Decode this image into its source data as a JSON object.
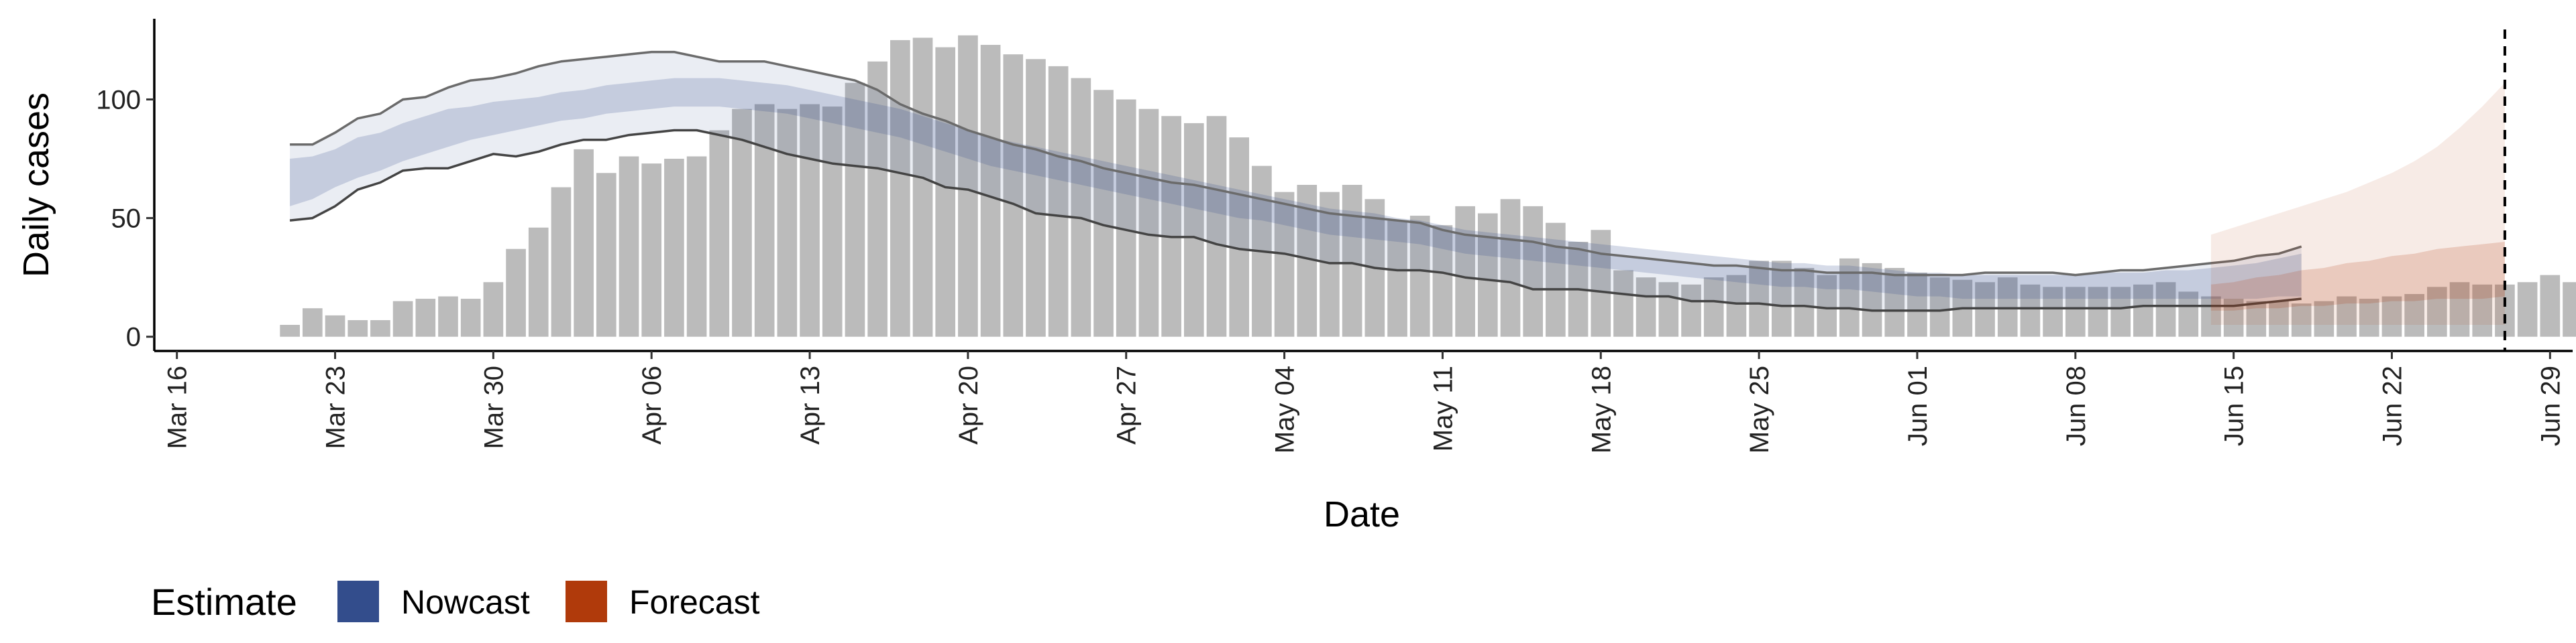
{
  "chart_data": {
    "type": "bar",
    "xlabel": "Date",
    "ylabel": "Daily cases",
    "ylim": [
      -6,
      134
    ],
    "yticks": [
      0,
      50,
      100
    ],
    "xlim": [
      "2020-03-15",
      "2020-06-30"
    ],
    "xticks": [
      "Mar 16",
      "Mar 23",
      "Mar 30",
      "Apr 06",
      "Apr 13",
      "Apr 20",
      "Apr 27",
      "May 04",
      "May 11",
      "May 18",
      "May 25",
      "Jun 01",
      "Jun 08",
      "Jun 15",
      "Jun 22",
      "Jun 29"
    ],
    "xtick_dates": [
      "2020-03-16",
      "2020-03-23",
      "2020-03-30",
      "2020-04-06",
      "2020-04-13",
      "2020-04-20",
      "2020-04-27",
      "2020-05-04",
      "2020-05-11",
      "2020-05-18",
      "2020-05-25",
      "2020-06-01",
      "2020-06-08",
      "2020-06-15",
      "2020-06-22",
      "2020-06-29"
    ],
    "grid": false,
    "bar_color": "#bbbbbb",
    "reported": {
      "start_date": "2020-03-21",
      "values": [
        5,
        12,
        9,
        7,
        7,
        15,
        16,
        17,
        16,
        23,
        37,
        46,
        63,
        79,
        69,
        76,
        73,
        75,
        76,
        87,
        96,
        98,
        96,
        98,
        97,
        107,
        116,
        125,
        126,
        122,
        127,
        123,
        119,
        117,
        114,
        109,
        104,
        100,
        96,
        93,
        90,
        93,
        84,
        72,
        61,
        64,
        61,
        64,
        58,
        49,
        51,
        47,
        55,
        52,
        58,
        55,
        48,
        40,
        45,
        28,
        25,
        23,
        22,
        25,
        26,
        32,
        32,
        29,
        26,
        33,
        31,
        29,
        27,
        25,
        24,
        23,
        25,
        22,
        21,
        21,
        21,
        21,
        22,
        23,
        19,
        17,
        16,
        15,
        15,
        14,
        15,
        17,
        16,
        17,
        18,
        21,
        23,
        22,
        22,
        23,
        26,
        23,
        21,
        19
      ]
    },
    "nowcast": {
      "name": "Nowcast",
      "color": "#334d8c",
      "start_date": "2020-03-21",
      "median": [
        65,
        67,
        71,
        76,
        78,
        82,
        85,
        88,
        90,
        92,
        93,
        95,
        97,
        98,
        100,
        101,
        102,
        103,
        103,
        103,
        102,
        101,
        100,
        98,
        96,
        94,
        92,
        90,
        87,
        84,
        81,
        78,
        76,
        74,
        72,
        70,
        68,
        66,
        64,
        62,
        60,
        58,
        56,
        54,
        52,
        50,
        48,
        47,
        46,
        45,
        44,
        42,
        40,
        39,
        38,
        37,
        36,
        35,
        34,
        33,
        32,
        31,
        30,
        29,
        28,
        27,
        26,
        26,
        25,
        25,
        24,
        23,
        22,
        22,
        21,
        21,
        21,
        21,
        21,
        21,
        21,
        21,
        21,
        21,
        21,
        21,
        21,
        22,
        23,
        24
      ],
      "inner_lower": [
        55,
        58,
        63,
        67,
        70,
        74,
        77,
        80,
        83,
        85,
        87,
        89,
        91,
        92,
        94,
        95,
        96,
        97,
        97,
        97,
        96,
        95,
        94,
        92,
        90,
        88,
        86,
        84,
        81,
        78,
        75,
        72,
        70,
        68,
        66,
        64,
        62,
        60,
        58,
        56,
        54,
        52,
        50,
        49,
        47,
        45,
        43,
        42,
        41,
        40,
        39,
        37,
        35,
        34,
        33,
        32,
        31,
        30,
        29,
        28,
        27,
        26,
        25,
        24,
        23,
        22,
        21,
        21,
        20,
        20,
        19,
        18,
        17,
        17,
        16,
        16,
        16,
        16,
        16,
        16,
        16,
        16,
        16,
        16,
        16,
        16,
        16,
        16,
        17,
        17
      ],
      "inner_upper": [
        75,
        76,
        79,
        84,
        86,
        90,
        93,
        96,
        97,
        99,
        100,
        101,
        103,
        104,
        106,
        107,
        108,
        109,
        109,
        109,
        108,
        107,
        106,
        104,
        102,
        100,
        98,
        96,
        93,
        90,
        87,
        84,
        82,
        80,
        78,
        76,
        74,
        72,
        70,
        68,
        66,
        64,
        62,
        60,
        58,
        56,
        54,
        53,
        52,
        50,
        49,
        47,
        45,
        44,
        43,
        42,
        41,
        40,
        39,
        38,
        37,
        36,
        35,
        34,
        33,
        32,
        31,
        31,
        30,
        30,
        29,
        28,
        27,
        27,
        26,
        26,
        26,
        26,
        26,
        26,
        27,
        27,
        27,
        28,
        28,
        29,
        30,
        31,
        33,
        35
      ],
      "outer_lower": [
        49,
        50,
        55,
        62,
        65,
        70,
        71,
        71,
        74,
        77,
        76,
        78,
        81,
        83,
        83,
        85,
        86,
        87,
        87,
        85,
        83,
        80,
        77,
        75,
        73,
        72,
        71,
        69,
        67,
        63,
        62,
        59,
        56,
        52,
        51,
        50,
        47,
        45,
        43,
        42,
        42,
        39,
        37,
        36,
        35,
        33,
        31,
        31,
        29,
        28,
        28,
        27,
        25,
        24,
        23,
        20,
        20,
        20,
        19,
        18,
        17,
        17,
        15,
        15,
        14,
        14,
        13,
        13,
        12,
        12,
        11,
        11,
        11,
        11,
        12,
        12,
        12,
        12,
        12,
        12,
        12,
        12,
        13,
        13,
        13,
        13,
        13,
        14,
        15,
        16
      ],
      "outer_upper": [
        81,
        81,
        86,
        92,
        94,
        100,
        101,
        105,
        108,
        109,
        111,
        114,
        116,
        117,
        118,
        119,
        120,
        120,
        118,
        116,
        116,
        116,
        114,
        112,
        110,
        108,
        104,
        98,
        94,
        91,
        87,
        84,
        81,
        79,
        76,
        74,
        71,
        69,
        67,
        65,
        64,
        62,
        60,
        58,
        56,
        54,
        52,
        51,
        50,
        49,
        48,
        45,
        43,
        42,
        41,
        40,
        38,
        37,
        35,
        34,
        33,
        32,
        31,
        30,
        30,
        29,
        28,
        28,
        27,
        27,
        27,
        26,
        26,
        26,
        26,
        27,
        27,
        27,
        27,
        26,
        27,
        28,
        28,
        29,
        30,
        31,
        32,
        34,
        35,
        38
      ]
    },
    "forecast": {
      "name": "Forecast",
      "color": "#b03a0b",
      "start_date": "2020-06-14",
      "inner_lower": [
        11,
        11,
        12,
        12,
        13,
        13,
        14,
        14,
        15,
        15,
        16,
        16,
        16,
        17
      ],
      "inner_upper": [
        22,
        23,
        25,
        26,
        28,
        29,
        31,
        32,
        34,
        35,
        37,
        38,
        39,
        40
      ],
      "outer_lower": [
        5,
        5,
        5,
        5,
        5,
        5,
        5,
        5,
        5,
        5,
        5,
        5,
        5,
        5
      ],
      "outer_upper": [
        43,
        46,
        49,
        52,
        55,
        58,
        61,
        65,
        69,
        74,
        80,
        88,
        97,
        107
      ]
    },
    "vline_date": "2020-06-27",
    "legend": {
      "title": "Estimate",
      "position": "bottom-left",
      "entries": [
        {
          "name": "Nowcast",
          "color": "#334d8c"
        },
        {
          "name": "Forecast",
          "color": "#b03a0b"
        }
      ]
    }
  }
}
